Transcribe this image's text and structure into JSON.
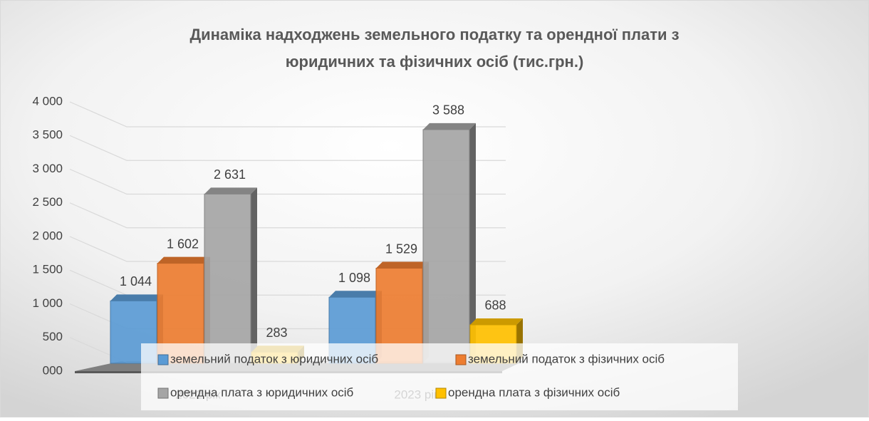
{
  "chart_data": {
    "type": "bar3d",
    "title": "Динаміка надходжень земельного податку та орендної плати з юридичних та фізичних осіб (тис.грн.)",
    "categories": [
      "2022 рік",
      "2023 рік"
    ],
    "series": [
      {
        "name": "земельний податок з юридичних осіб",
        "color": "#5b9bd5",
        "values": [
          1044,
          1098
        ],
        "value_labels": [
          "1 044",
          "1 098"
        ]
      },
      {
        "name": "земельний податок з фізичних осіб",
        "color": "#ed7d31",
        "values": [
          1602,
          1529
        ],
        "value_labels": [
          "1 602",
          "1 529"
        ]
      },
      {
        "name": "орендна плата з юридичних осіб",
        "color": "#a5a5a5",
        "values": [
          2631,
          3588
        ],
        "value_labels": [
          "2 631",
          "3 588"
        ]
      },
      {
        "name": "орендна плата з фізичних осіб",
        "color": "#ffc000",
        "values": [
          283,
          688
        ],
        "value_labels": [
          "283",
          "688"
        ]
      }
    ],
    "ylim": [
      0,
      4000
    ],
    "yticks": [
      {
        "value": 0,
        "label": "000"
      },
      500,
      {
        "value": 1000,
        "label": "1 000"
      },
      {
        "value": 1500,
        "label": "1 500"
      },
      {
        "value": 2000,
        "label": "2 000"
      },
      {
        "value": 2500,
        "label": "2 500"
      },
      {
        "value": 3000,
        "label": "3 000"
      },
      {
        "value": 3500,
        "label": "3 500"
      },
      {
        "value": 4000,
        "label": "4 000"
      }
    ],
    "grid": true,
    "legend": "bottom"
  }
}
